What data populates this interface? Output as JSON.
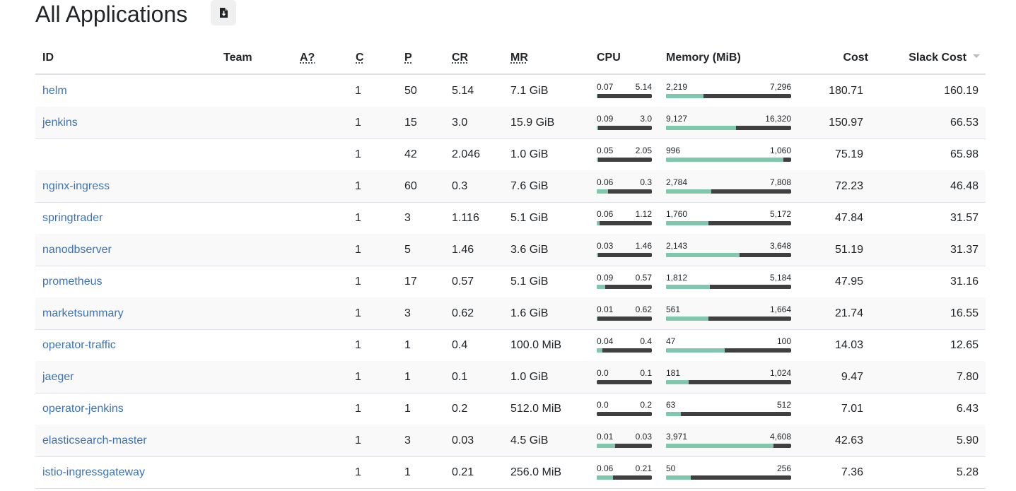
{
  "page": {
    "title": "All Applications",
    "export_icon": "download-file-icon"
  },
  "headers": {
    "id": "ID",
    "team": "Team",
    "active": "A?",
    "clusters": "C",
    "pods": "P",
    "cpu_requests": "CR",
    "memory_requests": "MR",
    "cpu": "CPU",
    "memory": "Memory (MiB)",
    "cost": "Cost",
    "slack_cost": "Slack Cost"
  },
  "sort": {
    "column": "slack_cost",
    "direction": "descending"
  },
  "colors": {
    "link": "#3b73b9",
    "bar_fill": "#7fc7ad",
    "bar_track": "#404040"
  },
  "rows": [
    {
      "id": "helm",
      "team": "",
      "active": "",
      "clusters": "1",
      "pods": "50",
      "cr": "5.14",
      "mr": "7.1 GiB",
      "cpu_usage": "0.07",
      "cpu_req": "5.14",
      "cpu_fraction": 0.014,
      "mem_usage": "2,219",
      "mem_req": "7,296",
      "mem_fraction": 0.3,
      "cost": "180.71",
      "slack_cost": "160.19"
    },
    {
      "id": "jenkins",
      "team": "",
      "active": "",
      "clusters": "1",
      "pods": "15",
      "cr": "3.0",
      "mr": "15.9 GiB",
      "cpu_usage": "0.09",
      "cpu_req": "3.0",
      "cpu_fraction": 0.03,
      "mem_usage": "9,127",
      "mem_req": "16,320",
      "mem_fraction": 0.56,
      "cost": "150.97",
      "slack_cost": "66.53"
    },
    {
      "id": "",
      "team": "",
      "active": "",
      "clusters": "1",
      "pods": "42",
      "cr": "2.046",
      "mr": "1.0 GiB",
      "cpu_usage": "0.05",
      "cpu_req": "2.05",
      "cpu_fraction": 0.024,
      "mem_usage": "996",
      "mem_req": "1,060",
      "mem_fraction": 0.94,
      "cost": "75.19",
      "slack_cost": "65.98"
    },
    {
      "id": "nginx-ingress",
      "team": "",
      "active": "",
      "clusters": "1",
      "pods": "60",
      "cr": "0.3",
      "mr": "7.6 GiB",
      "cpu_usage": "0.06",
      "cpu_req": "0.3",
      "cpu_fraction": 0.2,
      "mem_usage": "2,784",
      "mem_req": "7,808",
      "mem_fraction": 0.36,
      "cost": "72.23",
      "slack_cost": "46.48"
    },
    {
      "id": "springtrader",
      "team": "",
      "active": "",
      "clusters": "1",
      "pods": "3",
      "cr": "1.116",
      "mr": "5.1 GiB",
      "cpu_usage": "0.06",
      "cpu_req": "1.12",
      "cpu_fraction": 0.054,
      "mem_usage": "1,760",
      "mem_req": "5,172",
      "mem_fraction": 0.34,
      "cost": "47.84",
      "slack_cost": "31.57"
    },
    {
      "id": "nanodbserver",
      "team": "",
      "active": "",
      "clusters": "1",
      "pods": "5",
      "cr": "1.46",
      "mr": "3.6 GiB",
      "cpu_usage": "0.03",
      "cpu_req": "1.46",
      "cpu_fraction": 0.021,
      "mem_usage": "2,143",
      "mem_req": "3,648",
      "mem_fraction": 0.59,
      "cost": "51.19",
      "slack_cost": "31.37"
    },
    {
      "id": "prometheus",
      "team": "",
      "active": "",
      "clusters": "1",
      "pods": "17",
      "cr": "0.57",
      "mr": "5.1 GiB",
      "cpu_usage": "0.09",
      "cpu_req": "0.57",
      "cpu_fraction": 0.16,
      "mem_usage": "1,812",
      "mem_req": "5,184",
      "mem_fraction": 0.35,
      "cost": "47.95",
      "slack_cost": "31.16"
    },
    {
      "id": "marketsummary",
      "team": "",
      "active": "",
      "clusters": "1",
      "pods": "3",
      "cr": "0.62",
      "mr": "1.6 GiB",
      "cpu_usage": "0.01",
      "cpu_req": "0.62",
      "cpu_fraction": 0.016,
      "mem_usage": "561",
      "mem_req": "1,664",
      "mem_fraction": 0.34,
      "cost": "21.74",
      "slack_cost": "16.55"
    },
    {
      "id": "operator-traffic",
      "team": "",
      "active": "",
      "clusters": "1",
      "pods": "1",
      "cr": "0.4",
      "mr": "100.0 MiB",
      "cpu_usage": "0.04",
      "cpu_req": "0.4",
      "cpu_fraction": 0.1,
      "mem_usage": "47",
      "mem_req": "100",
      "mem_fraction": 0.47,
      "cost": "14.03",
      "slack_cost": "12.65"
    },
    {
      "id": "jaeger",
      "team": "",
      "active": "",
      "clusters": "1",
      "pods": "1",
      "cr": "0.1",
      "mr": "1.0 GiB",
      "cpu_usage": "0.0",
      "cpu_req": "0.1",
      "cpu_fraction": 0.0,
      "mem_usage": "181",
      "mem_req": "1,024",
      "mem_fraction": 0.18,
      "cost": "9.47",
      "slack_cost": "7.80"
    },
    {
      "id": "operator-jenkins",
      "team": "",
      "active": "",
      "clusters": "1",
      "pods": "1",
      "cr": "0.2",
      "mr": "512.0 MiB",
      "cpu_usage": "0.0",
      "cpu_req": "0.2",
      "cpu_fraction": 0.0,
      "mem_usage": "63",
      "mem_req": "512",
      "mem_fraction": 0.12,
      "cost": "7.01",
      "slack_cost": "6.43"
    },
    {
      "id": "elasticsearch-master",
      "team": "",
      "active": "",
      "clusters": "1",
      "pods": "3",
      "cr": "0.03",
      "mr": "4.5 GiB",
      "cpu_usage": "0.01",
      "cpu_req": "0.03",
      "cpu_fraction": 0.33,
      "mem_usage": "3,971",
      "mem_req": "4,608",
      "mem_fraction": 0.86,
      "cost": "42.63",
      "slack_cost": "5.90"
    },
    {
      "id": "istio-ingressgateway",
      "team": "",
      "active": "",
      "clusters": "1",
      "pods": "1",
      "cr": "0.21",
      "mr": "256.0 MiB",
      "cpu_usage": "0.06",
      "cpu_req": "0.21",
      "cpu_fraction": 0.29,
      "mem_usage": "50",
      "mem_req": "256",
      "mem_fraction": 0.2,
      "cost": "7.36",
      "slack_cost": "5.28"
    }
  ]
}
